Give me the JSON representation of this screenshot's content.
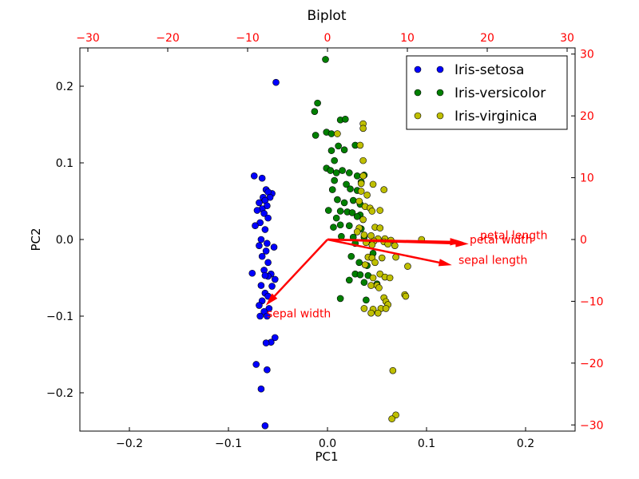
{
  "chart_data": {
    "type": "scatter",
    "title": "Biplot",
    "xlabel": "PC1",
    "ylabel": "PC2",
    "xlim": [
      -0.25,
      0.25
    ],
    "ylim": [
      -0.25,
      0.25
    ],
    "xticks": [
      -0.2,
      -0.1,
      0.0,
      0.1,
      0.2
    ],
    "xtick_labels": [
      "−0.2",
      "−0.1",
      "0.0",
      "0.1",
      "0.2"
    ],
    "yticks": [
      -0.2,
      -0.1,
      0.0,
      0.1,
      0.2
    ],
    "ytick_labels": [
      "−0.2",
      "−0.1",
      "0.0",
      "0.1",
      "0.2"
    ],
    "secondary_x": {
      "lim": [
        -31,
        31
      ],
      "ticks": [
        -30,
        -20,
        -10,
        0,
        10,
        20,
        30
      ],
      "tick_labels": [
        "−30",
        "−20",
        "−10",
        "0",
        "10",
        "20",
        "30"
      ],
      "color": "#ff0000"
    },
    "secondary_y": {
      "lim": [
        -31,
        31
      ],
      "ticks": [
        -30,
        -20,
        -10,
        0,
        10,
        20,
        30
      ],
      "tick_labels": [
        "−30",
        "−20",
        "−10",
        "0",
        "10",
        "20",
        "30"
      ],
      "color": "#ff0000"
    },
    "legend_position": "top-right",
    "grid": false,
    "series": [
      {
        "name": "Iris-setosa",
        "color": "#0000ff",
        "points": [
          [
            -0.052,
            0.205
          ],
          [
            -0.074,
            0.083
          ],
          [
            -0.066,
            0.08
          ],
          [
            -0.062,
            0.065
          ],
          [
            -0.056,
            0.06
          ],
          [
            -0.06,
            0.062
          ],
          [
            -0.065,
            0.055
          ],
          [
            -0.058,
            0.055
          ],
          [
            -0.063,
            0.051
          ],
          [
            -0.069,
            0.048
          ],
          [
            -0.061,
            0.044
          ],
          [
            -0.066,
            0.04
          ],
          [
            -0.071,
            0.038
          ],
          [
            -0.064,
            0.034
          ],
          [
            -0.06,
            0.028
          ],
          [
            -0.068,
            0.022
          ],
          [
            -0.073,
            0.018
          ],
          [
            -0.063,
            0.013
          ],
          [
            -0.067,
            0.0
          ],
          [
            -0.061,
            -0.005
          ],
          [
            -0.069,
            -0.008
          ],
          [
            -0.054,
            -0.01
          ],
          [
            -0.062,
            -0.015
          ],
          [
            -0.066,
            -0.022
          ],
          [
            -0.06,
            -0.03
          ],
          [
            -0.064,
            -0.04
          ],
          [
            -0.076,
            -0.044
          ],
          [
            -0.057,
            -0.045
          ],
          [
            -0.06,
            -0.048
          ],
          [
            -0.063,
            -0.047
          ],
          [
            -0.053,
            -0.052
          ],
          [
            -0.067,
            -0.06
          ],
          [
            -0.056,
            -0.061
          ],
          [
            -0.063,
            -0.07
          ],
          [
            -0.06,
            -0.074
          ],
          [
            -0.066,
            -0.08
          ],
          [
            -0.069,
            -0.086
          ],
          [
            -0.059,
            -0.09
          ],
          [
            -0.064,
            -0.094
          ],
          [
            -0.068,
            -0.1
          ],
          [
            -0.061,
            -0.1
          ],
          [
            -0.053,
            -0.128
          ],
          [
            -0.057,
            -0.134
          ],
          [
            -0.062,
            -0.135
          ],
          [
            -0.072,
            -0.163
          ],
          [
            -0.061,
            -0.17
          ],
          [
            -0.067,
            -0.195
          ],
          [
            -0.063,
            -0.243
          ]
        ]
      },
      {
        "name": "Iris-versicolor",
        "color": "#008000",
        "points": [
          [
            -0.002,
            0.235
          ],
          [
            -0.01,
            0.178
          ],
          [
            -0.013,
            0.167
          ],
          [
            0.013,
            0.156
          ],
          [
            0.018,
            0.157
          ],
          [
            -0.001,
            0.14
          ],
          [
            0.004,
            0.138
          ],
          [
            -0.012,
            0.136
          ],
          [
            0.011,
            0.122
          ],
          [
            0.004,
            0.116
          ],
          [
            0.017,
            0.117
          ],
          [
            0.028,
            0.123
          ],
          [
            0.007,
            0.103
          ],
          [
            -0.001,
            0.093
          ],
          [
            0.003,
            0.09
          ],
          [
            0.009,
            0.087
          ],
          [
            0.015,
            0.09
          ],
          [
            0.022,
            0.087
          ],
          [
            0.03,
            0.083
          ],
          [
            0.037,
            0.084
          ],
          [
            0.007,
            0.077
          ],
          [
            0.019,
            0.072
          ],
          [
            0.034,
            0.075
          ],
          [
            0.005,
            0.065
          ],
          [
            0.023,
            0.066
          ],
          [
            0.03,
            0.064
          ],
          [
            0.01,
            0.052
          ],
          [
            0.017,
            0.048
          ],
          [
            0.026,
            0.051
          ],
          [
            0.033,
            0.046
          ],
          [
            0.001,
            0.038
          ],
          [
            0.013,
            0.037
          ],
          [
            0.02,
            0.036
          ],
          [
            0.025,
            0.035
          ],
          [
            0.033,
            0.032
          ],
          [
            0.009,
            0.028
          ],
          [
            0.03,
            0.03
          ],
          [
            0.006,
            0.016
          ],
          [
            0.013,
            0.019
          ],
          [
            0.022,
            0.018
          ],
          [
            0.034,
            0.014
          ],
          [
            0.014,
            0.004
          ],
          [
            0.026,
            0.003
          ],
          [
            0.037,
            0.003
          ],
          [
            0.028,
            -0.005
          ],
          [
            0.045,
            -0.005
          ],
          [
            0.024,
            -0.022
          ],
          [
            0.046,
            -0.018
          ],
          [
            0.032,
            -0.03
          ],
          [
            0.04,
            -0.034
          ],
          [
            0.028,
            -0.045
          ],
          [
            0.033,
            -0.046
          ],
          [
            0.041,
            -0.047
          ],
          [
            0.022,
            -0.053
          ],
          [
            0.037,
            -0.056
          ],
          [
            0.05,
            -0.058
          ],
          [
            0.013,
            -0.077
          ],
          [
            0.039,
            -0.079
          ]
        ]
      },
      {
        "name": "Iris-virginica",
        "color": "#bfbf00",
        "points": [
          [
            0.036,
            0.151
          ],
          [
            0.036,
            0.145
          ],
          [
            0.01,
            0.138
          ],
          [
            0.033,
            0.123
          ],
          [
            0.036,
            0.103
          ],
          [
            0.036,
            0.083
          ],
          [
            0.034,
            0.073
          ],
          [
            0.046,
            0.072
          ],
          [
            0.034,
            0.063
          ],
          [
            0.057,
            0.065
          ],
          [
            0.04,
            0.058
          ],
          [
            0.032,
            0.05
          ],
          [
            0.038,
            0.043
          ],
          [
            0.043,
            0.041
          ],
          [
            0.053,
            0.038
          ],
          [
            0.045,
            0.037
          ],
          [
            0.036,
            0.026
          ],
          [
            0.032,
            0.015
          ],
          [
            0.048,
            0.016
          ],
          [
            0.053,
            0.015
          ],
          [
            0.03,
            0.01
          ],
          [
            0.037,
            0.006
          ],
          [
            0.044,
            0.005
          ],
          [
            0.051,
            0.001
          ],
          [
            0.058,
            0.001
          ],
          [
            0.047,
            -0.002
          ],
          [
            0.057,
            -0.003
          ],
          [
            0.064,
            -0.001
          ],
          [
            0.095,
            0.0
          ],
          [
            0.039,
            -0.004
          ],
          [
            0.045,
            -0.007
          ],
          [
            0.061,
            -0.006
          ],
          [
            0.068,
            -0.008
          ],
          [
            0.041,
            -0.023
          ],
          [
            0.045,
            -0.024
          ],
          [
            0.055,
            -0.024
          ],
          [
            0.069,
            -0.023
          ],
          [
            0.038,
            -0.033
          ],
          [
            0.048,
            -0.03
          ],
          [
            0.081,
            -0.035
          ],
          [
            0.053,
            -0.045
          ],
          [
            0.046,
            -0.05
          ],
          [
            0.058,
            -0.049
          ],
          [
            0.063,
            -0.05
          ],
          [
            0.044,
            -0.06
          ],
          [
            0.05,
            -0.06
          ],
          [
            0.052,
            -0.063
          ],
          [
            0.078,
            -0.072
          ],
          [
            0.057,
            -0.076
          ],
          [
            0.079,
            -0.074
          ],
          [
            0.059,
            -0.081
          ],
          [
            0.061,
            -0.085
          ],
          [
            0.037,
            -0.09
          ],
          [
            0.046,
            -0.091
          ],
          [
            0.054,
            -0.09
          ],
          [
            0.059,
            -0.09
          ],
          [
            0.044,
            -0.096
          ],
          [
            0.051,
            -0.096
          ],
          [
            0.066,
            -0.171
          ],
          [
            0.069,
            -0.229
          ],
          [
            0.065,
            -0.234
          ]
        ]
      }
    ],
    "arrows": [
      {
        "label": "petal length",
        "dx": 17.5,
        "dy": -0.7
      },
      {
        "label": "petal width",
        "dx": 16.8,
        "dy": -0.4
      },
      {
        "label": "sepal length",
        "dx": 15.4,
        "dy": -4.1
      },
      {
        "label": "sepal width",
        "dx": -7.6,
        "dy": -10.5
      }
    ],
    "arrow_color": "#ff0000"
  }
}
